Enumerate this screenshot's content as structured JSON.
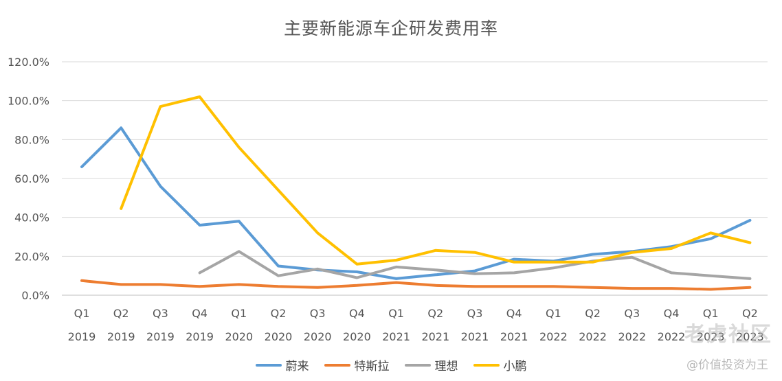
{
  "chart_data": {
    "type": "line",
    "title": "主要新能源车企研发费用率",
    "categories": [
      [
        "Q1",
        "2019"
      ],
      [
        "Q2",
        "2019"
      ],
      [
        "Q3",
        "2019"
      ],
      [
        "Q4",
        "2019"
      ],
      [
        "Q1",
        "2020"
      ],
      [
        "Q2",
        "2020"
      ],
      [
        "Q3",
        "2020"
      ],
      [
        "Q4",
        "2020"
      ],
      [
        "Q1",
        "2021"
      ],
      [
        "Q2",
        "2021"
      ],
      [
        "Q3",
        "2021"
      ],
      [
        "Q4",
        "2021"
      ],
      [
        "Q1",
        "2022"
      ],
      [
        "Q2",
        "2022"
      ],
      [
        "Q3",
        "2022"
      ],
      [
        "Q4",
        "2022"
      ],
      [
        "Q1",
        "2023"
      ],
      [
        "Q2",
        "2023"
      ]
    ],
    "y_ticks": [
      "0.0%",
      "20.0%",
      "40.0%",
      "60.0%",
      "80.0%",
      "100.0%",
      "120.0%"
    ],
    "ylim": [
      0,
      120
    ],
    "y_unit": "%",
    "grid": true,
    "legend_position": "bottom",
    "series": [
      {
        "name": "蔚来",
        "color": "#5B9BD5",
        "values": [
          66,
          86,
          56,
          36,
          38,
          15,
          13,
          12,
          8.5,
          10.5,
          12.5,
          18.5,
          17.5,
          21,
          22.5,
          25,
          29,
          38.5
        ]
      },
      {
        "name": "特斯拉",
        "color": "#ED7D31",
        "values": [
          7.5,
          5.5,
          5.5,
          4.5,
          5.5,
          4.5,
          4,
          5,
          6.5,
          5,
          4.5,
          4.5,
          4.5,
          4,
          3.5,
          3.5,
          3,
          4
        ]
      },
      {
        "name": "理想",
        "color": "#A5A5A5",
        "values": [
          null,
          null,
          null,
          11.5,
          22.5,
          10,
          13.5,
          9,
          14.5,
          13,
          11,
          11.5,
          14,
          17.5,
          19.5,
          11.5,
          10,
          8.5
        ]
      },
      {
        "name": "小鹏",
        "color": "#FFC000",
        "values": [
          null,
          44.5,
          97,
          102,
          76,
          54,
          32,
          16,
          18,
          23,
          22,
          17,
          17,
          17,
          22,
          24,
          32,
          27
        ]
      }
    ]
  },
  "watermark": {
    "logo_text": "老虎社区",
    "handle": "@价值投资为王"
  }
}
